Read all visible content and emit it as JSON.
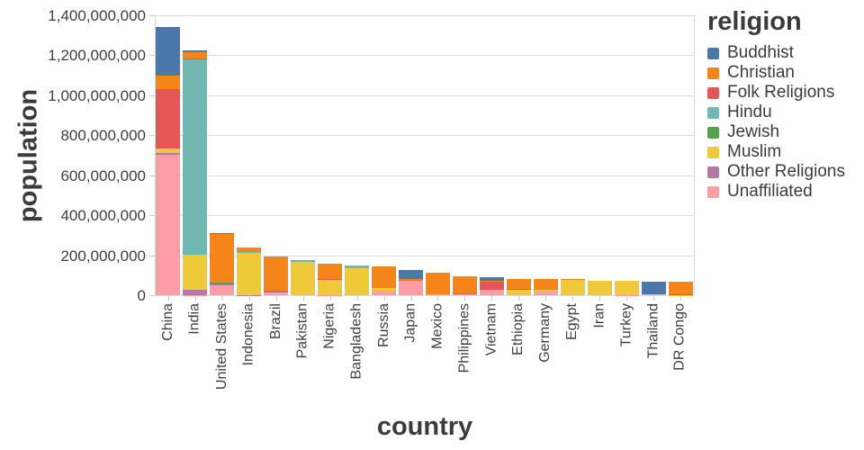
{
  "chart_data": {
    "type": "bar",
    "stacked": true,
    "xlabel": "country",
    "ylabel": "population",
    "legend_title": "religion",
    "legend_position": "right",
    "grid": true,
    "ylim": [
      0,
      1400000000
    ],
    "y_tick_values": [
      0,
      200000000,
      400000000,
      600000000,
      800000000,
      1000000000,
      1200000000,
      1400000000
    ],
    "y_tick_labels": [
      "0",
      "200,000,000",
      "400,000,000",
      "600,000,000",
      "800,000,000",
      "1,000,000,000",
      "1,200,000,000",
      "1,400,000,000"
    ],
    "categories": [
      "China",
      "India",
      "United States",
      "Indonesia",
      "Brazil",
      "Pakistan",
      "Nigeria",
      "Bangladesh",
      "Russia",
      "Japan",
      "Mexico",
      "Philippines",
      "Vietnam",
      "Ethiopia",
      "Germany",
      "Egypt",
      "Iran",
      "Turkey",
      "Thailand",
      "DR Congo"
    ],
    "series": [
      {
        "name": "Buddhist",
        "color": "#4c78a8",
        "values": [
          244100000,
          9300000,
          3700000,
          1700000,
          300000,
          0,
          0,
          700000,
          200000,
          45800000,
          0,
          0,
          14400000,
          0,
          300000,
          0,
          0,
          0,
          64400000,
          0
        ]
      },
      {
        "name": "Christian",
        "color": "#f58518",
        "values": [
          68400000,
          31100000,
          243100000,
          23700000,
          173300000,
          2800000,
          78100000,
          300000,
          104800000,
          2000000,
          107800000,
          86400000,
          7200000,
          52100000,
          56500000,
          4100000,
          300000,
          300000,
          600000,
          63200000
        ]
      },
      {
        "name": "Folk Religions",
        "color": "#e45756",
        "values": [
          294300000,
          5800000,
          600000,
          700000,
          5500000,
          0,
          1400000,
          800000,
          200000,
          500000,
          1100000,
          1400000,
          39800000,
          2200000,
          0,
          0,
          0,
          0,
          0,
          1800000
        ]
      },
      {
        "name": "Hindu",
        "color": "#72b7b2",
        "values": [
          0,
          973800000,
          1800000,
          4100000,
          0,
          3300000,
          0,
          13500000,
          0,
          0,
          0,
          0,
          0,
          0,
          100000,
          0,
          0,
          0,
          0,
          0
        ]
      },
      {
        "name": "Jewish",
        "color": "#54a24b",
        "values": [
          0,
          0,
          5700000,
          0,
          100000,
          0,
          0,
          0,
          300000,
          0,
          100000,
          0,
          0,
          0,
          200000,
          0,
          0,
          0,
          0,
          0
        ]
      },
      {
        "name": "Muslim",
        "color": "#eeca3b",
        "values": [
          24700000,
          176200000,
          2800000,
          209100000,
          0,
          167400000,
          77300000,
          133500000,
          14300000,
          200000,
          0,
          5100000,
          200000,
          28700000,
          4800000,
          77000000,
          73600000,
          71300000,
          3800000,
          1000000
        ]
      },
      {
        "name": "Other Religions",
        "color": "#b279a2",
        "values": [
          9100000,
          27600000,
          1900000,
          400000,
          300000,
          0,
          200000,
          0,
          100000,
          5600000,
          0,
          100000,
          400000,
          0,
          100000,
          0,
          100000,
          0,
          0,
          0
        ]
      },
      {
        "name": "Unaffiliated",
        "color": "#ff9da6",
        "values": [
          700700000,
          900000,
          50800000,
          200000,
          15400000,
          0,
          400000,
          0,
          23100000,
          72100000,
          5300000,
          100000,
          26000000,
          100000,
          20300000,
          0,
          100000,
          900000,
          200000,
          0
        ]
      }
    ]
  },
  "style_colors": {
    "grid": "#dddddd",
    "domain": "#d6d6d6",
    "tick": "#c9c9c9",
    "tick_label": "#3f3f3f",
    "title": "#3b3b3b",
    "background": "#ffffff"
  }
}
